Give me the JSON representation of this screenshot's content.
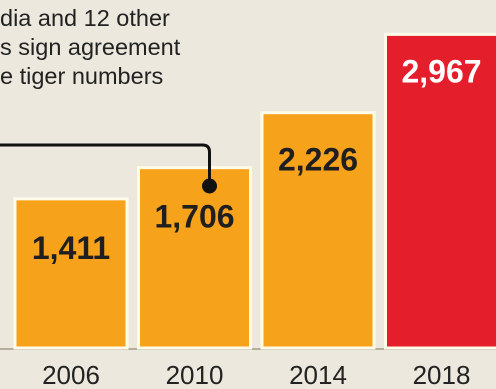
{
  "annotation": {
    "lines": [
      "dia and 12 other",
      "s sign agreement",
      "e tiger numbers"
    ]
  },
  "chart_data": {
    "type": "bar",
    "categories": [
      "2006",
      "2010",
      "2014",
      "2018"
    ],
    "values": [
      1411,
      1706,
      2226,
      2967
    ],
    "value_labels": [
      "1,411",
      "1,706",
      "2,226",
      "2,967"
    ],
    "title": "",
    "xlabel": "",
    "ylabel": "",
    "bar_color": "#f7a21b",
    "highlight_color": "#e41e2b",
    "highlight_index": 3,
    "annotation_marker_category": "2010"
  }
}
